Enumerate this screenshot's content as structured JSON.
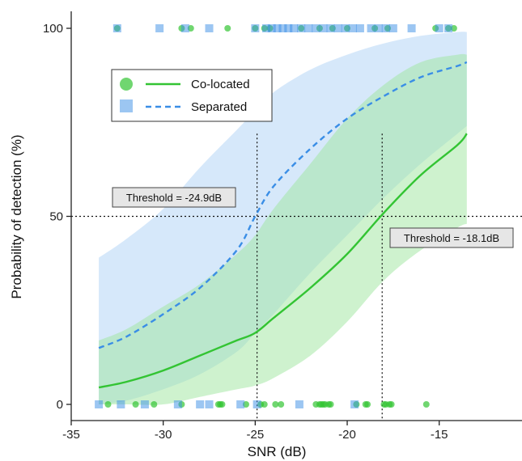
{
  "chart_data": {
    "type": "line",
    "xlabel": "SNR (dB)",
    "ylabel": "Probability of detection (%)",
    "xlim": [
      -35,
      -10.5
    ],
    "ylim": [
      0,
      100
    ],
    "x_ticks": [
      -35,
      -30,
      -25,
      -20,
      -15
    ],
    "y_ticks": [
      0,
      50,
      100
    ],
    "legend_position": "top-left",
    "series": [
      {
        "name": "Co-located",
        "color": "#33c433",
        "band_color": "#9ee59e",
        "line_style": "solid",
        "marker": "circle",
        "x": [
          -33.5,
          -32,
          -30,
          -28,
          -26,
          -25,
          -24,
          -22,
          -20,
          -18,
          -16,
          -14,
          -13.5
        ],
        "values": [
          4.5,
          6,
          9,
          13,
          17,
          19,
          23,
          31,
          40,
          51,
          61,
          69,
          72
        ],
        "ci_lower": [
          0,
          0,
          0,
          2,
          4,
          5,
          7,
          13,
          22,
          33,
          41,
          47,
          48
        ],
        "ci_upper": [
          17,
          20,
          26,
          32,
          40,
          45,
          52,
          64,
          76,
          85,
          91,
          93,
          93
        ],
        "detections_x": [
          -32.5,
          -29,
          -28.5,
          -26.5,
          -25,
          -24.5,
          -24.2,
          -22.5,
          -21.5,
          -20.8,
          -20,
          -18.5,
          -17.8,
          -15.2,
          -14.5,
          -14.2
        ],
        "misses_x": [
          -33,
          -31.5,
          -30.5,
          -29,
          -27,
          -26.9,
          -26.8,
          -25.5,
          -24.7,
          -24.5,
          -23.9,
          -23.6,
          -21.7,
          -21.5,
          -21.4,
          -21.3,
          -21.2,
          -21.0,
          -20.9,
          -19.5,
          -19.0,
          -18.9,
          -18.0,
          -17.9,
          -17.7,
          -17.6,
          -15.7
        ]
      },
      {
        "name": "Separated",
        "color": "#3a8ee6",
        "band_color": "#b5d6f5",
        "line_style": "dashed",
        "marker": "square",
        "x": [
          -33.5,
          -32,
          -30,
          -28,
          -26,
          -25,
          -24,
          -22,
          -20,
          -18,
          -16,
          -14,
          -13.5
        ],
        "values": [
          15,
          18,
          24,
          31,
          41,
          50,
          58,
          68,
          76,
          82,
          87,
          90,
          91
        ],
        "ci_lower": [
          0,
          1,
          4,
          8,
          14,
          19,
          24,
          35,
          45,
          55,
          64,
          72,
          74
        ],
        "ci_upper": [
          39,
          44,
          52,
          63,
          73,
          78,
          83,
          89,
          93,
          96,
          98,
          99,
          99
        ],
        "detections_x": [
          -32.5,
          -30.2,
          -28.8,
          -27.5,
          -25,
          -24.4,
          -24.1,
          -23.8,
          -23.5,
          -23.2,
          -22.9,
          -22.5,
          -22.1,
          -21.7,
          -21.3,
          -20.9,
          -20.5,
          -20.1,
          -19.7,
          -19.3,
          -18.7,
          -18.3,
          -17.9,
          -17.5,
          -16.5,
          -15.0,
          -14.5
        ],
        "misses_x": [
          -33.5,
          -32.3,
          -31.0,
          -29.2,
          -28.0,
          -27.5,
          -25.8,
          -24.9,
          -22.6,
          -19.6
        ]
      }
    ],
    "thresholds": [
      {
        "x": -24.9,
        "label": "Threshold = -24.9dB"
      },
      {
        "x": -18.1,
        "label": "Threshold = -18.1dB"
      }
    ],
    "reference_line_y": 50
  }
}
